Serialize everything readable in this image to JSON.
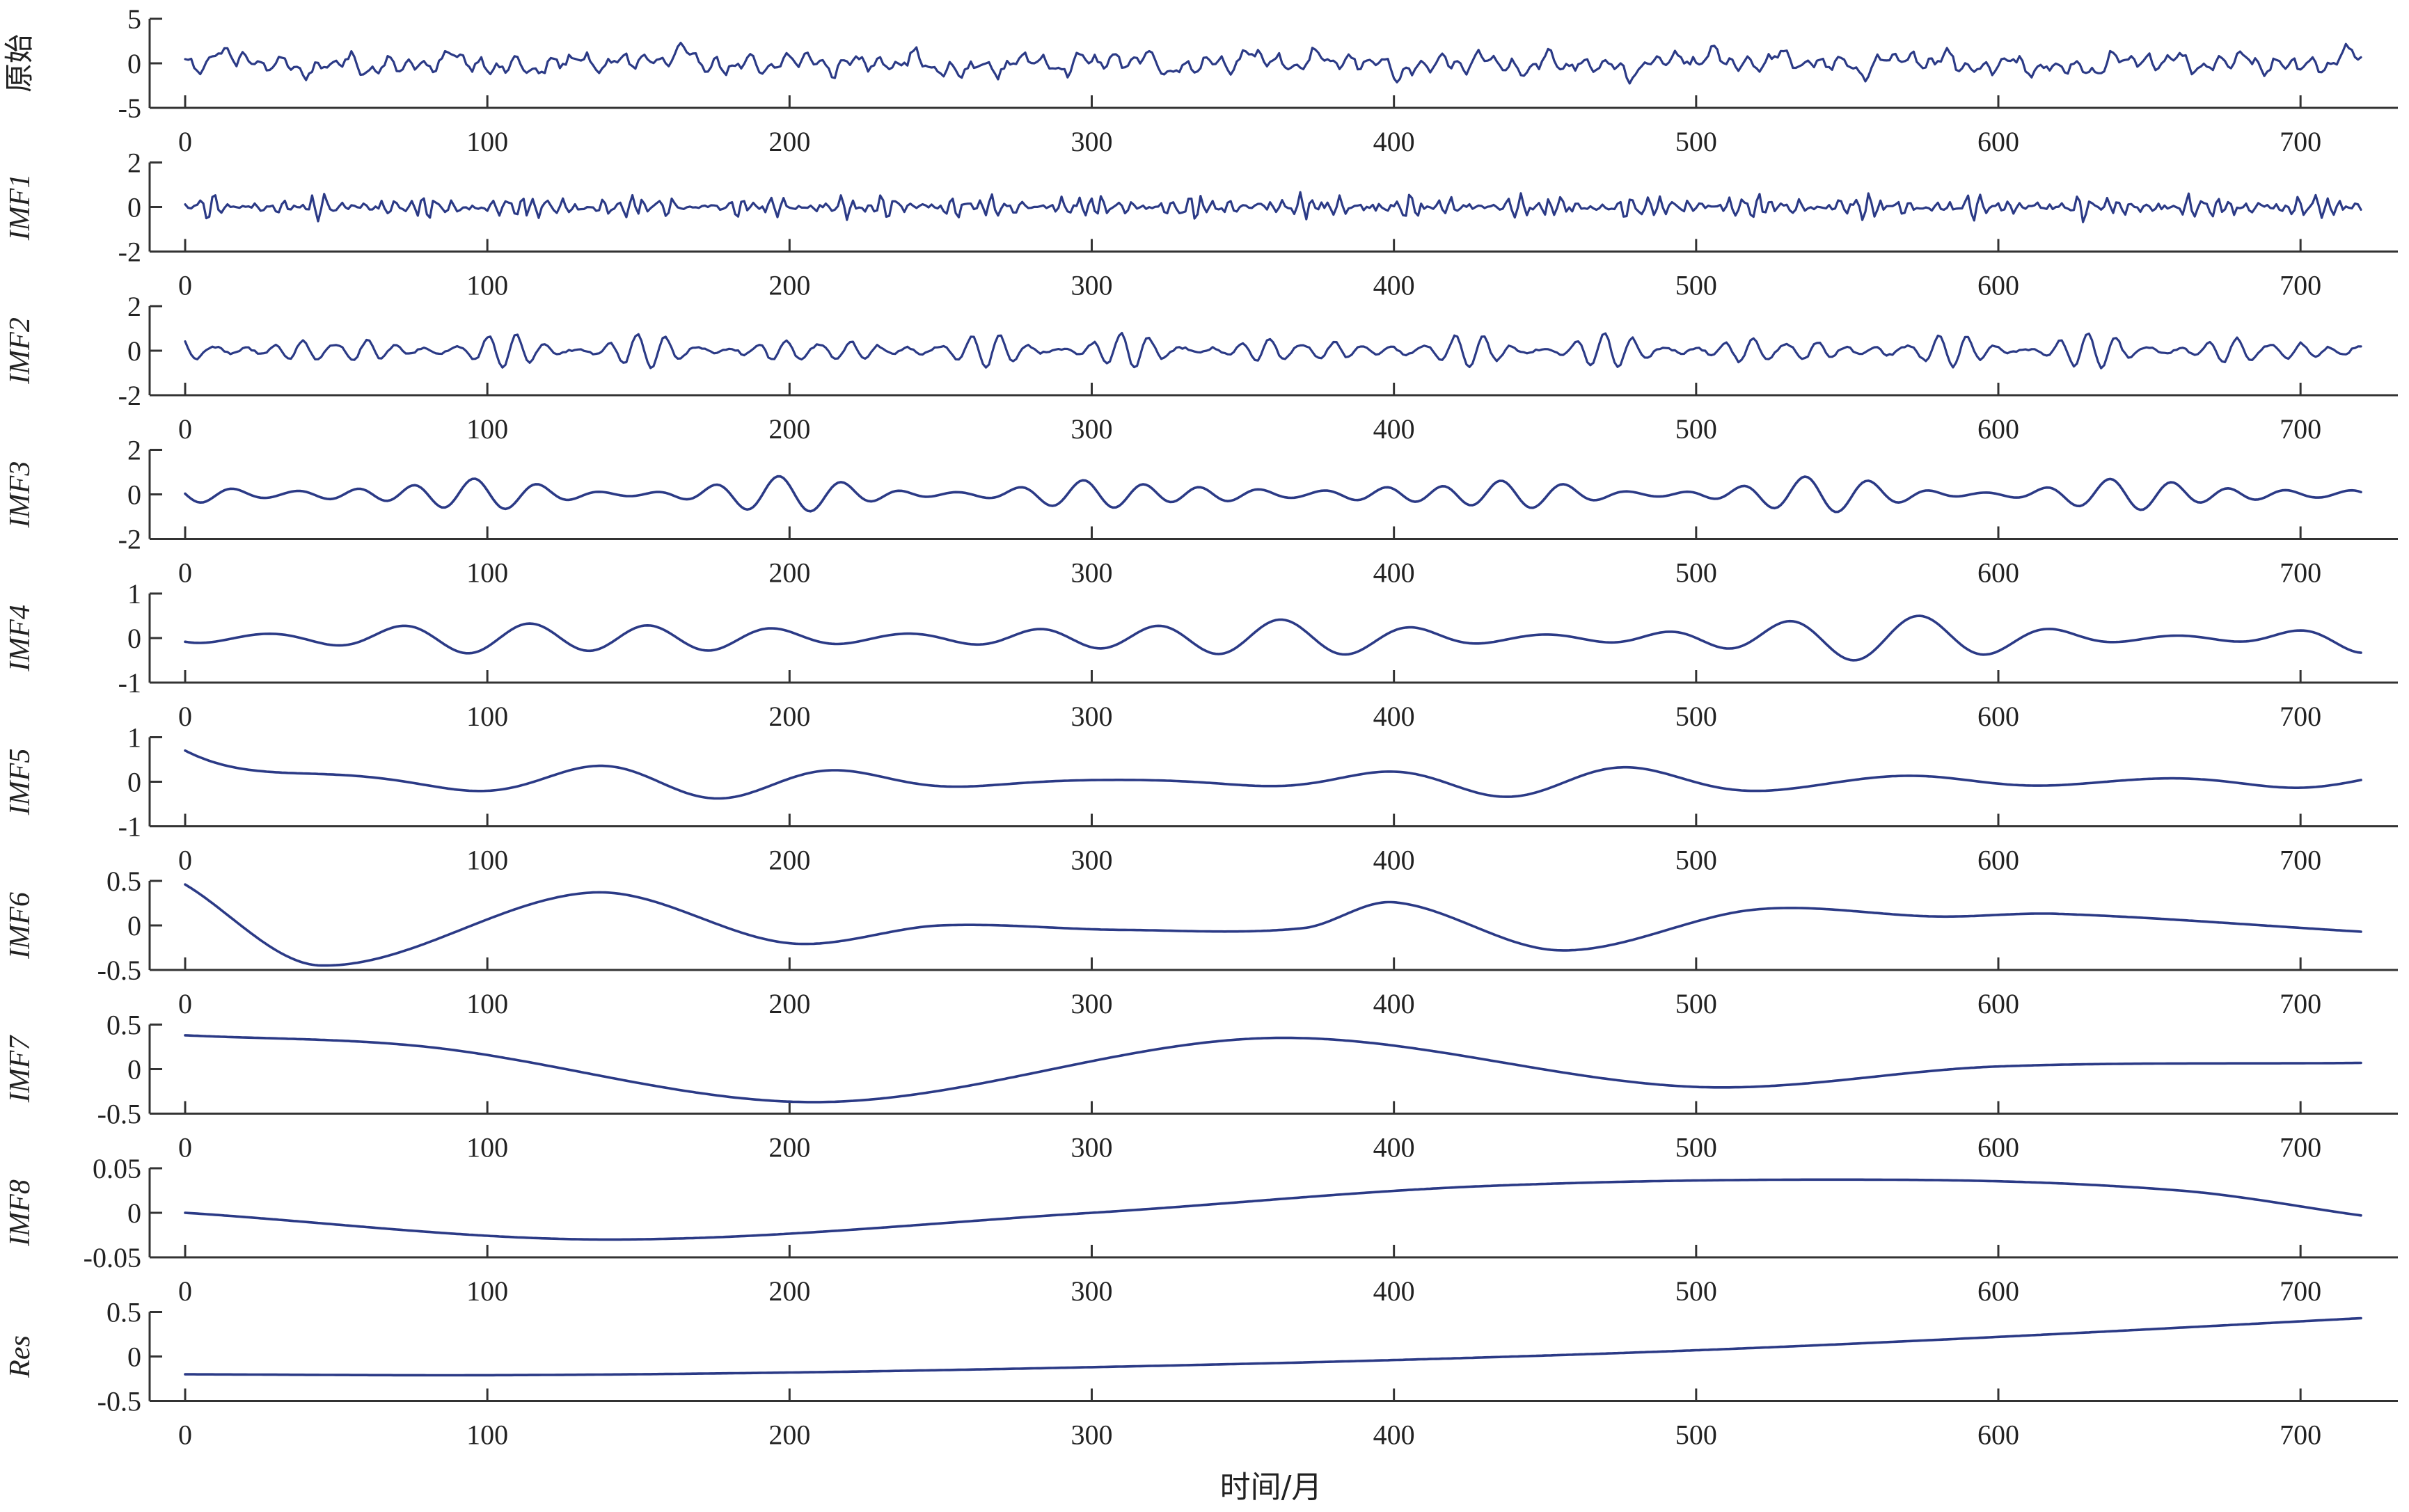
{
  "chart_data": {
    "type": "line",
    "layout": "stacked-subplots",
    "xlabel": "时间/月",
    "xlim": [
      0,
      720
    ],
    "xticks": [
      0,
      100,
      200,
      300,
      400,
      500,
      600,
      700
    ],
    "line_color": "#2b3a86",
    "grid": false,
    "legend": "none",
    "panels": [
      {
        "ylabel": "原始",
        "ylim": [
          -5,
          5
        ],
        "yticks": [
          5,
          0,
          -5
        ],
        "ytick_labels": [
          "5",
          "0",
          "-5"
        ],
        "components": [
          {
            "amp": 0.55,
            "period": 6
          },
          {
            "amp": 0.45,
            "period": 11
          },
          {
            "amp": 0.45,
            "period": 19
          },
          {
            "amp": 0.35,
            "period": 37
          },
          {
            "amp": 0.3,
            "period": 71
          },
          {
            "amp": 0.2,
            "period": 181
          }
        ],
        "noise": 0.35,
        "offset": 0.0
      },
      {
        "ylabel": "IMF1",
        "ylim": [
          -2,
          2
        ],
        "yticks": [
          2,
          0,
          -2
        ],
        "ytick_labels": [
          "2",
          "0",
          "-2"
        ],
        "components": [
          {
            "amp": 0.3,
            "period": 4.6
          },
          {
            "amp": 0.22,
            "period": 3.3
          },
          {
            "amp": 0.15,
            "period": 6.1
          }
        ],
        "modulation_period": 37,
        "noise": 0.12,
        "offset": 0.0
      },
      {
        "ylabel": "IMF2",
        "ylim": [
          -2,
          2
        ],
        "yticks": [
          2,
          0,
          -2
        ],
        "ytick_labels": [
          "2",
          "0",
          "-2"
        ],
        "components": [
          {
            "amp": 0.5,
            "period": 10
          },
          {
            "amp": 0.25,
            "period": 8
          }
        ],
        "modulation_period": 53,
        "noise": 0.05,
        "offset": 0.0
      },
      {
        "ylabel": "IMF3",
        "ylim": [
          -2,
          2
        ],
        "yticks": [
          2,
          0,
          -2
        ],
        "ytick_labels": [
          "2",
          "0",
          "-2"
        ],
        "components": [
          {
            "amp": 0.55,
            "period": 20
          },
          {
            "amp": 0.2,
            "period": 26
          }
        ],
        "modulation_period": 113,
        "noise": 0.0,
        "offset": 0.0
      },
      {
        "ylabel": "IMF4",
        "ylim": [
          -1,
          1
        ],
        "yticks": [
          1,
          0,
          -1
        ],
        "ytick_labels": [
          "1",
          "0",
          "-1"
        ],
        "components": [
          {
            "amp": 0.38,
            "period": 42
          },
          {
            "amp": 0.12,
            "period": 55
          }
        ],
        "modulation_period": 211,
        "noise": 0.0,
        "offset": 0.0
      },
      {
        "ylabel": "IMF5",
        "ylim": [
          -1,
          1
        ],
        "yticks": [
          1,
          0,
          -1
        ],
        "ytick_labels": [
          "1",
          "0",
          "-1"
        ],
        "components": [
          {
            "amp": 0.28,
            "period": 87
          },
          {
            "amp": 0.08,
            "period": 64
          }
        ],
        "start_value": 0.7,
        "start_decay": 22,
        "modulation_period": 330,
        "noise": 0.0,
        "offset": 0.0
      },
      {
        "ylabel": "IMF6",
        "ylim": [
          -0.5,
          0.5
        ],
        "yticks": [
          0.5,
          0,
          -0.5
        ],
        "ytick_labels": [
          "0.5",
          "0",
          "-0.5"
        ],
        "points": [
          [
            0,
            0.46
          ],
          [
            45,
            -0.45
          ],
          [
            135,
            0.37
          ],
          [
            200,
            -0.2
          ],
          [
            250,
            0.0
          ],
          [
            310,
            -0.05
          ],
          [
            370,
            -0.03
          ],
          [
            400,
            0.26
          ],
          [
            455,
            -0.28
          ],
          [
            520,
            0.18
          ],
          [
            580,
            0.1
          ],
          [
            620,
            0.13
          ],
          [
            720,
            -0.07
          ]
        ],
        "offset": 0.0
      },
      {
        "ylabel": "IMF7",
        "ylim": [
          -0.5,
          0.5
        ],
        "yticks": [
          0.5,
          0,
          -0.5
        ],
        "ytick_labels": [
          "0.5",
          "0",
          "-0.5"
        ],
        "points": [
          [
            0,
            0.38
          ],
          [
            80,
            0.25
          ],
          [
            210,
            -0.37
          ],
          [
            360,
            0.35
          ],
          [
            500,
            -0.2
          ],
          [
            600,
            0.03
          ],
          [
            720,
            0.07
          ]
        ],
        "offset": 0.0
      },
      {
        "ylabel": "IMF8",
        "ylim": [
          -0.05,
          0.05
        ],
        "yticks": [
          0.05,
          0,
          -0.05
        ],
        "ytick_labels": [
          "0.05",
          "0",
          "-0.05"
        ],
        "points": [
          [
            0,
            0.0
          ],
          [
            140,
            -0.03
          ],
          [
            300,
            0.0
          ],
          [
            430,
            0.03
          ],
          [
            570,
            0.037
          ],
          [
            660,
            0.025
          ],
          [
            720,
            -0.003
          ]
        ],
        "offset": 0.0
      },
      {
        "ylabel": "Res",
        "ylim": [
          -0.5,
          0.5
        ],
        "yticks": [
          0.5,
          0,
          -0.5
        ],
        "ytick_labels": [
          "0.5",
          "0",
          "-0.5"
        ],
        "points": [
          [
            0,
            -0.2
          ],
          [
            100,
            -0.21
          ],
          [
            200,
            -0.18
          ],
          [
            300,
            -0.12
          ],
          [
            400,
            -0.04
          ],
          [
            500,
            0.07
          ],
          [
            600,
            0.22
          ],
          [
            720,
            0.43
          ]
        ],
        "offset": 0.0
      }
    ]
  }
}
